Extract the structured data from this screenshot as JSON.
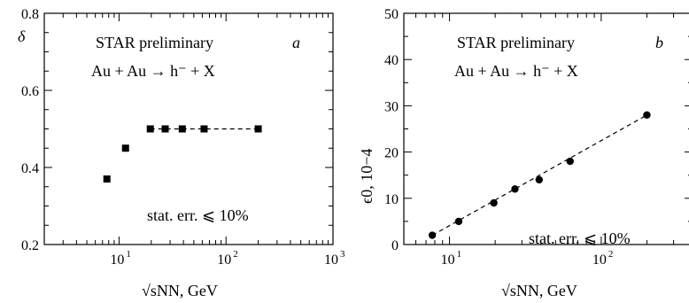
{
  "chart_data": [
    {
      "id": "a",
      "type": "scatter",
      "panel_label": "a",
      "title": "STAR preliminary",
      "subtitle": "Au + Au → h⁻ + X",
      "annotation": "stat. err. ⩽ 10%",
      "xlabel": "√sNN, GeV",
      "ylabel": "δ",
      "xscale": "log",
      "xlim": [
        2,
        1000
      ],
      "ylim": [
        0.2,
        0.8
      ],
      "ytick_values": [
        0.2,
        0.4,
        0.6,
        0.8
      ],
      "ytick_labels": [
        "0.2",
        "0.4",
        "0.6",
        "0.8"
      ],
      "xtick_labels": [
        {
          "base": "10",
          "exp": "1",
          "value": 10
        },
        {
          "base": "10",
          "exp": "2",
          "value": 100
        },
        {
          "base": "10",
          "exp": "3",
          "value": 1000
        }
      ],
      "marker": "square",
      "series": [
        {
          "x": [
            7.7,
            11.5,
            19.6,
            27,
            39,
            62.4,
            200
          ],
          "y": [
            0.37,
            0.45,
            0.5,
            0.5,
            0.5,
            0.5,
            0.5
          ]
        }
      ],
      "fit_line": {
        "x": [
          19.6,
          200
        ],
        "y": [
          0.5,
          0.5
        ],
        "style": "dashed"
      }
    },
    {
      "id": "b",
      "type": "scatter",
      "panel_label": "b",
      "title": "STAR preliminary",
      "subtitle": "Au + Au → h⁻ + X",
      "annotation": "stat. err. ⩽ 10%",
      "xlabel": "√sNN, GeV",
      "ylabel": "ϵ0, 10−4",
      "xscale": "log",
      "xlim": [
        5,
        400
      ],
      "ylim": [
        0,
        50
      ],
      "ytick_values": [
        0,
        10,
        20,
        30,
        40,
        50
      ],
      "ytick_labels": [
        "0",
        "10",
        "20",
        "30",
        "40",
        "50"
      ],
      "xtick_labels": [
        {
          "base": "10",
          "exp": "1",
          "value": 10
        },
        {
          "base": "10",
          "exp": "2",
          "value": 100
        }
      ],
      "marker": "circle",
      "series": [
        {
          "x": [
            7.7,
            11.5,
            19.6,
            27,
            39,
            62.4,
            200
          ],
          "y": [
            2,
            5,
            9,
            12,
            14,
            18,
            28
          ]
        }
      ],
      "fit_line": {
        "x": [
          7.7,
          200
        ],
        "y": [
          2,
          28
        ],
        "style": "dashed"
      }
    }
  ]
}
